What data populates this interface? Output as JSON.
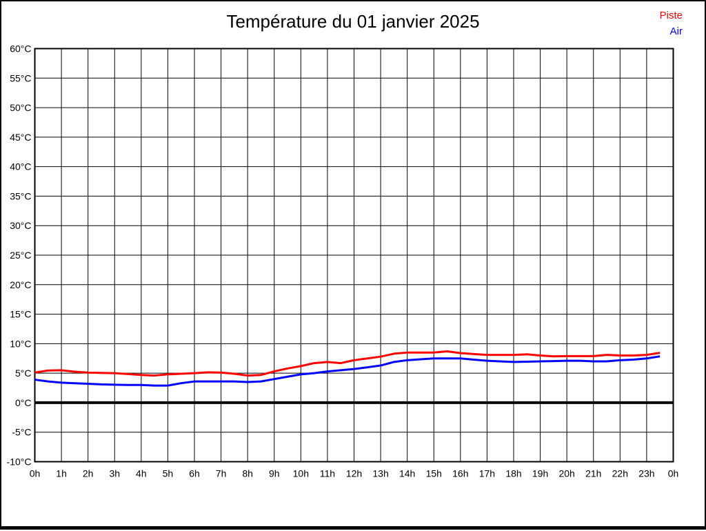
{
  "title": "Température du 01 janvier 2025",
  "legend": {
    "piste_label": "Piste",
    "air_label": "Air"
  },
  "colors": {
    "background": "#ffffff",
    "grid": "#000000",
    "frame": "#000000",
    "zero_line": "#000000",
    "piste": "#ff0000",
    "air": "#0000ff"
  },
  "chart_data": {
    "type": "line",
    "title": "Température du 01 janvier 2025",
    "xlabel": "",
    "ylabel": "",
    "xlim_hours": [
      0,
      24
    ],
    "ylim": [
      -10,
      60
    ],
    "y_tick_step": 5,
    "x_tick_step_hours": 1,
    "grid": true,
    "zero_line_emphasized": true,
    "legend_position": "top-right",
    "x_tick_labels": [
      "0h",
      "1h",
      "2h",
      "3h",
      "4h",
      "5h",
      "6h",
      "7h",
      "8h",
      "9h",
      "10h",
      "11h",
      "12h",
      "13h",
      "14h",
      "15h",
      "16h",
      "17h",
      "18h",
      "19h",
      "20h",
      "21h",
      "22h",
      "23h",
      "0h"
    ],
    "y_tick_labels": [
      "60°C",
      "55°C",
      "50°C",
      "45°C",
      "40°C",
      "35°C",
      "30°C",
      "25°C",
      "20°C",
      "15°C",
      "10°C",
      "5°C",
      "0°C",
      "-5°C",
      "-10°C"
    ],
    "x_hours": [
      0,
      0.5,
      1,
      1.5,
      2,
      2.5,
      3,
      3.5,
      4,
      4.5,
      5,
      5.5,
      6,
      6.5,
      7,
      7.5,
      8,
      8.5,
      9,
      9.5,
      10,
      10.5,
      11,
      11.5,
      12,
      12.5,
      13,
      13.5,
      14,
      14.5,
      15,
      15.5,
      16,
      16.5,
      17,
      17.5,
      18,
      18.5,
      19,
      19.5,
      20,
      20.5,
      21,
      21.5,
      22,
      22.5,
      23,
      23.5
    ],
    "series": [
      {
        "name": "Piste",
        "color": "#ff0000",
        "values": [
          5.1,
          5.45,
          5.5,
          5.25,
          5.1,
          5.05,
          5.0,
          4.85,
          4.7,
          4.6,
          4.8,
          4.9,
          5.0,
          5.15,
          5.1,
          4.9,
          4.6,
          4.7,
          5.3,
          5.8,
          6.2,
          6.7,
          6.9,
          6.7,
          7.2,
          7.5,
          7.8,
          8.3,
          8.5,
          8.5,
          8.5,
          8.7,
          8.4,
          8.25,
          8.1,
          8.1,
          8.1,
          8.2,
          8.0,
          7.85,
          7.9,
          7.9,
          7.9,
          8.1,
          8.0,
          8.0,
          8.1,
          8.45
        ]
      },
      {
        "name": "Air",
        "color": "#0000ff",
        "values": [
          3.9,
          3.6,
          3.4,
          3.3,
          3.2,
          3.1,
          3.05,
          3.0,
          3.0,
          2.9,
          2.9,
          3.3,
          3.6,
          3.6,
          3.6,
          3.6,
          3.5,
          3.6,
          4.0,
          4.4,
          4.8,
          5.0,
          5.3,
          5.5,
          5.7,
          6.0,
          6.3,
          6.9,
          7.2,
          7.35,
          7.5,
          7.5,
          7.5,
          7.3,
          7.1,
          7.0,
          6.9,
          6.95,
          7.0,
          7.05,
          7.1,
          7.1,
          7.0,
          7.0,
          7.2,
          7.3,
          7.5,
          7.85
        ]
      }
    ]
  }
}
